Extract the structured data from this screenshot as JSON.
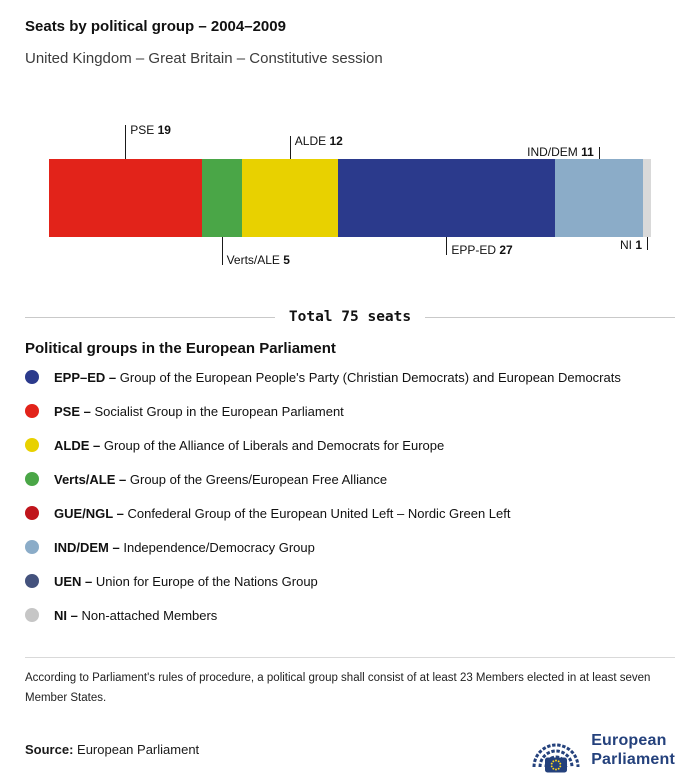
{
  "header": {
    "title": "Seats by political group – 2004–2009",
    "subtitle": "United Kingdom – Great Britain – Constitutive session"
  },
  "chart_data": {
    "type": "bar",
    "variant": "stacked-horizontal",
    "title": "Seats by political group – 2004–2009",
    "total_seats": 75,
    "total_label": "Total 75 seats",
    "categories": [
      "PSE",
      "Verts/ALE",
      "ALDE",
      "EPP-ED",
      "IND/DEM",
      "NI"
    ],
    "values": [
      19,
      5,
      12,
      27,
      11,
      1
    ],
    "segments": [
      {
        "name": "PSE",
        "seats": 19,
        "color": "#e2231a",
        "callout": {
          "side": "above",
          "align": "right",
          "len": 34
        }
      },
      {
        "name": "Verts/ALE",
        "seats": 5,
        "color": "#4aa647",
        "callout": {
          "side": "below",
          "align": "right",
          "len": 28
        }
      },
      {
        "name": "ALDE",
        "seats": 12,
        "color": "#e8d100",
        "callout": {
          "side": "above",
          "align": "right",
          "len": 23
        }
      },
      {
        "name": "EPP-ED",
        "seats": 27,
        "color": "#2b3a8c",
        "callout": {
          "side": "below",
          "align": "right",
          "len": 18
        }
      },
      {
        "name": "IND/DEM",
        "seats": 11,
        "color": "#8bacc8",
        "callout": {
          "side": "above",
          "align": "left",
          "len": 12
        }
      },
      {
        "name": "NI",
        "seats": 1,
        "color": "#d9d9d9",
        "callout": {
          "side": "below",
          "align": "left",
          "len": 13
        }
      }
    ]
  },
  "legend": {
    "heading": "Political groups in the European Parliament",
    "items": [
      {
        "abbr": "EPP–ED –",
        "name": "Group of the European People's Party (Christian Democrats) and European Democrats",
        "color": "#2b3a8c"
      },
      {
        "abbr": "PSE –",
        "name": "Socialist Group in the European Parliament",
        "color": "#e2231a"
      },
      {
        "abbr": "ALDE –",
        "name": "Group of the Alliance of Liberals and Democrats for Europe",
        "color": "#e8d100"
      },
      {
        "abbr": "Verts/ALE –",
        "name": "Group of the Greens/European Free Alliance",
        "color": "#4aa647"
      },
      {
        "abbr": "GUE/NGL –",
        "name": "Confederal Group of the European United Left – Nordic Green Left",
        "color": "#c0151c"
      },
      {
        "abbr": "IND/DEM –",
        "name": "Independence/Democracy Group",
        "color": "#8bacc8"
      },
      {
        "abbr": "UEN –",
        "name": "Union for Europe of the Nations Group",
        "color": "#44527d"
      },
      {
        "abbr": "NI –",
        "name": "Non-attached Members",
        "color": "#c6c6c6"
      }
    ]
  },
  "footer": {
    "note": "According to Parliament's rules of procedure, a political group shall consist of at least 23 Members elected in at least seven Member States.",
    "source_label": "Source:",
    "source_value": "European Parliament",
    "logo_line1": "European",
    "logo_line2": "Parliament"
  }
}
